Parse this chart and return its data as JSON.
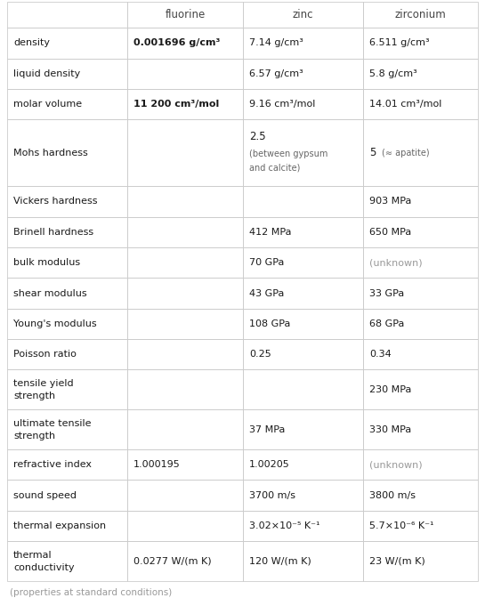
{
  "headers": [
    "",
    "fluorine",
    "zinc",
    "zirconium"
  ],
  "rows": [
    {
      "property": "density",
      "fluorine": {
        "text": "0.001696 g/cm³",
        "bold": true,
        "gray": false
      },
      "zinc": {
        "text": "7.14 g/cm³",
        "bold": false,
        "gray": false
      },
      "zirconium": {
        "text": "6.511 g/cm³",
        "bold": false,
        "gray": false
      }
    },
    {
      "property": "liquid density",
      "fluorine": {
        "text": "",
        "bold": false,
        "gray": false
      },
      "zinc": {
        "text": "6.57 g/cm³",
        "bold": false,
        "gray": false
      },
      "zirconium": {
        "text": "5.8 g/cm³",
        "bold": false,
        "gray": false
      }
    },
    {
      "property": "molar volume",
      "fluorine": {
        "text": "11 200 cm³/mol",
        "bold": true,
        "gray": false
      },
      "zinc": {
        "text": "9.16 cm³/mol",
        "bold": false,
        "gray": false
      },
      "zirconium": {
        "text": "14.01 cm³/mol",
        "bold": false,
        "gray": false
      }
    },
    {
      "property": "Mohs hardness",
      "fluorine": {
        "text": "",
        "bold": false,
        "gray": false
      },
      "zinc": {
        "text": "2.5\n(between gypsum\nand calcite)",
        "bold": false,
        "gray": false,
        "multiline": true,
        "main": "2.5",
        "sub": "(between gypsum\nand calcite)"
      },
      "zirconium": {
        "text": "5  (≈ apatite)",
        "bold": false,
        "gray": false,
        "mixed": true,
        "main": "5",
        "annotation": "(≈ apatite)"
      }
    },
    {
      "property": "Vickers hardness",
      "fluorine": {
        "text": "",
        "bold": false,
        "gray": false
      },
      "zinc": {
        "text": "",
        "bold": false,
        "gray": false
      },
      "zirconium": {
        "text": "903 MPa",
        "bold": false,
        "gray": false
      }
    },
    {
      "property": "Brinell hardness",
      "fluorine": {
        "text": "",
        "bold": false,
        "gray": false
      },
      "zinc": {
        "text": "412 MPa",
        "bold": false,
        "gray": false
      },
      "zirconium": {
        "text": "650 MPa",
        "bold": false,
        "gray": false
      }
    },
    {
      "property": "bulk modulus",
      "fluorine": {
        "text": "",
        "bold": false,
        "gray": false
      },
      "zinc": {
        "text": "70 GPa",
        "bold": false,
        "gray": false
      },
      "zirconium": {
        "text": "(unknown)",
        "bold": false,
        "gray": true
      }
    },
    {
      "property": "shear modulus",
      "fluorine": {
        "text": "",
        "bold": false,
        "gray": false
      },
      "zinc": {
        "text": "43 GPa",
        "bold": false,
        "gray": false
      },
      "zirconium": {
        "text": "33 GPa",
        "bold": false,
        "gray": false
      }
    },
    {
      "property": "Young's modulus",
      "fluorine": {
        "text": "",
        "bold": false,
        "gray": false
      },
      "zinc": {
        "text": "108 GPa",
        "bold": false,
        "gray": false
      },
      "zirconium": {
        "text": "68 GPa",
        "bold": false,
        "gray": false
      }
    },
    {
      "property": "Poisson ratio",
      "fluorine": {
        "text": "",
        "bold": false,
        "gray": false
      },
      "zinc": {
        "text": "0.25",
        "bold": false,
        "gray": false
      },
      "zirconium": {
        "text": "0.34",
        "bold": false,
        "gray": false
      }
    },
    {
      "property": "tensile yield\nstrength",
      "fluorine": {
        "text": "",
        "bold": false,
        "gray": false
      },
      "zinc": {
        "text": "",
        "bold": false,
        "gray": false
      },
      "zirconium": {
        "text": "230 MPa",
        "bold": false,
        "gray": false
      }
    },
    {
      "property": "ultimate tensile\nstrength",
      "fluorine": {
        "text": "",
        "bold": false,
        "gray": false
      },
      "zinc": {
        "text": "37 MPa",
        "bold": false,
        "gray": false
      },
      "zirconium": {
        "text": "330 MPa",
        "bold": false,
        "gray": false
      }
    },
    {
      "property": "refractive index",
      "fluorine": {
        "text": "1.000195",
        "bold": false,
        "gray": false
      },
      "zinc": {
        "text": "1.00205",
        "bold": false,
        "gray": false
      },
      "zirconium": {
        "text": "(unknown)",
        "bold": false,
        "gray": true
      }
    },
    {
      "property": "sound speed",
      "fluorine": {
        "text": "",
        "bold": false,
        "gray": false
      },
      "zinc": {
        "text": "3700 m/s",
        "bold": false,
        "gray": false
      },
      "zirconium": {
        "text": "3800 m/s",
        "bold": false,
        "gray": false
      }
    },
    {
      "property": "thermal expansion",
      "fluorine": {
        "text": "",
        "bold": false,
        "gray": false
      },
      "zinc": {
        "text": "3.02×10⁻⁵ K⁻¹",
        "bold": false,
        "gray": false
      },
      "zirconium": {
        "text": "5.7×10⁻⁶ K⁻¹",
        "bold": false,
        "gray": false
      }
    },
    {
      "property": "thermal\nconductivity",
      "fluorine": {
        "text": "0.0277 W/(m K)",
        "bold": false,
        "gray": false
      },
      "zinc": {
        "text": "120 W/(m K)",
        "bold": false,
        "gray": false
      },
      "zirconium": {
        "text": "23 W/(m K)",
        "bold": false,
        "gray": false
      }
    }
  ],
  "footer": "(properties at standard conditions)",
  "border_color": "#cccccc",
  "text_color": "#1a1a1a",
  "gray_color": "#999999",
  "header_text_color": "#444444",
  "small_text_color": "#666666",
  "figsize": [
    5.45,
    6.81
  ],
  "dpi": 100
}
